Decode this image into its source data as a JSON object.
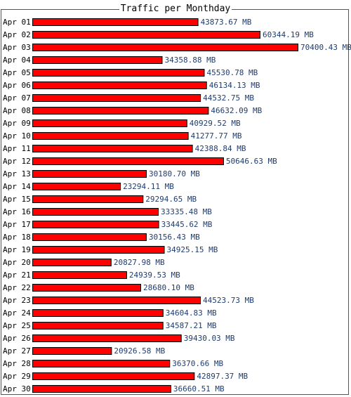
{
  "chart_data": {
    "type": "bar",
    "orientation": "horizontal",
    "title": "Traffic per Monthday",
    "unit": "MB",
    "categories": [
      "Apr 01",
      "Apr 02",
      "Apr 03",
      "Apr 04",
      "Apr 05",
      "Apr 06",
      "Apr 07",
      "Apr 08",
      "Apr 09",
      "Apr 10",
      "Apr 11",
      "Apr 12",
      "Apr 13",
      "Apr 14",
      "Apr 15",
      "Apr 16",
      "Apr 17",
      "Apr 18",
      "Apr 19",
      "Apr 20",
      "Apr 21",
      "Apr 22",
      "Apr 23",
      "Apr 24",
      "Apr 25",
      "Apr 26",
      "Apr 27",
      "Apr 28",
      "Apr 29",
      "Apr 30"
    ],
    "values": [
      43873.67,
      60344.19,
      70400.43,
      34358.88,
      45530.78,
      46134.13,
      44532.75,
      46632.09,
      40929.52,
      41277.77,
      42388.84,
      50646.63,
      30180.7,
      23294.11,
      29294.65,
      33335.48,
      33445.62,
      30156.43,
      34925.15,
      20827.98,
      24939.53,
      28680.1,
      44523.73,
      34604.83,
      34587.21,
      39430.03,
      20926.58,
      36370.66,
      42897.37,
      36660.51
    ],
    "value_labels": [
      "43873.67 MB",
      "60344.19 MB",
      "70400.43 MB",
      "34358.88 MB",
      "45530.78 MB",
      "46134.13 MB",
      "44532.75 MB",
      "46632.09 MB",
      "40929.52 MB",
      "41277.77 MB",
      "42388.84 MB",
      "50646.63 MB",
      "30180.70 MB",
      "23294.11 MB",
      "29294.65 MB",
      "33335.48 MB",
      "33445.62 MB",
      "30156.43 MB",
      "34925.15 MB",
      "20827.98 MB",
      "24939.53 MB",
      "28680.10 MB",
      "44523.73 MB",
      "34604.83 MB",
      "34587.21 MB",
      "39430.03 MB",
      "20926.58 MB",
      "36370.66 MB",
      "42897.37 MB",
      "36660.51 MB"
    ],
    "xlim": [
      0,
      70400.43
    ],
    "grid": false,
    "colors": {
      "bar_fill": "#ff0000",
      "bar_stroke": "#000000",
      "value_label": "#1f3c6e",
      "category_label": "#000000",
      "frame": "#555555"
    }
  }
}
